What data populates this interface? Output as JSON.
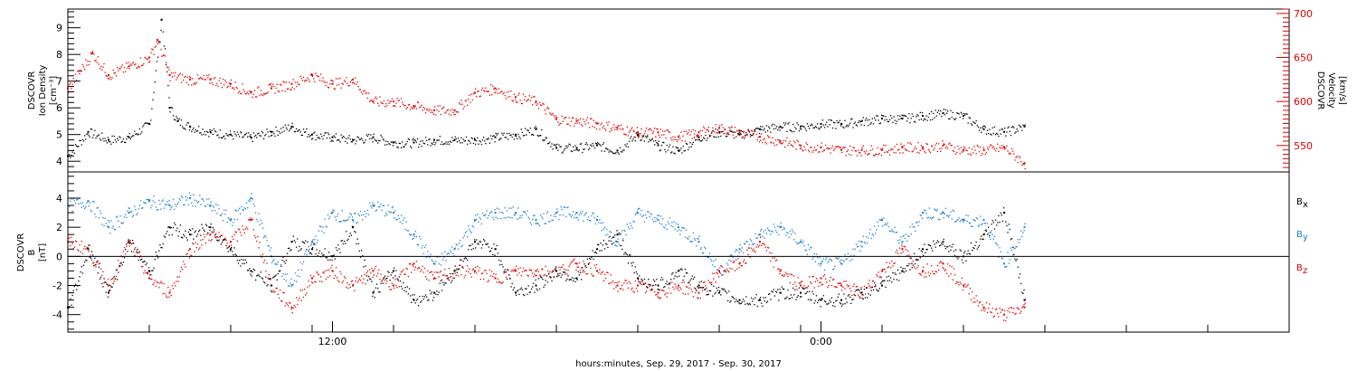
{
  "xlabel": "hours:minutes, Sep. 29, 2017 - Sep. 30, 2017",
  "colors": {
    "black": "#000000",
    "red": "#e00000",
    "blue": "#1f7fd0"
  },
  "chart_data": [
    {
      "type": "scatter",
      "panel": "top",
      "x_range_hours": [
        0,
        30
      ],
      "x_ticks": [
        {
          "hour": 6.5,
          "label": "12:00"
        },
        {
          "hour": 18.5,
          "label": "0:00"
        }
      ],
      "ylabel_left": [
        "DSCOVR",
        "Ion Density",
        "[cm⁻³]"
      ],
      "ylabel_right": [
        "DSCOVR",
        "Velocity",
        "[km/s]"
      ],
      "ylim_left": [
        3.6,
        9.7
      ],
      "yticks_left": [
        4,
        5,
        6,
        7,
        8,
        9
      ],
      "ylim_right": [
        520,
        705
      ],
      "yticks_right": [
        550,
        600,
        650,
        700
      ],
      "series": [
        {
          "name": "Ion Density",
          "axis": "left",
          "color": "#000000",
          "x": [
            0,
            0.5,
            1.0,
            1.5,
            2.0,
            2.3,
            2.5,
            2.7,
            3.0,
            3.5,
            4.0,
            4.5,
            5.0,
            5.5,
            6.0,
            6.5,
            7.0,
            7.5,
            8.0,
            8.5,
            9.0,
            9.5,
            10.0,
            10.5,
            11.0,
            11.5,
            12.0,
            12.5,
            13.0,
            13.5,
            14.0,
            14.5,
            15.0,
            15.5,
            16.0,
            16.5,
            17.0,
            17.5,
            18.0,
            18.5,
            19.0,
            19.5,
            20.0,
            20.5,
            21.0,
            21.5,
            22.0,
            22.5,
            23.0,
            23.5
          ],
          "y": [
            4.2,
            5.1,
            4.8,
            4.9,
            5.4,
            9.3,
            6.0,
            5.5,
            5.3,
            5.1,
            5.0,
            4.9,
            5.1,
            5.3,
            5.0,
            4.9,
            4.8,
            4.9,
            4.7,
            4.7,
            4.8,
            4.8,
            4.8,
            4.9,
            5.0,
            5.2,
            4.5,
            4.5,
            4.6,
            4.4,
            5.0,
            4.6,
            4.4,
            4.9,
            5.1,
            5.0,
            5.2,
            5.3,
            5.3,
            5.4,
            5.4,
            5.5,
            5.6,
            5.6,
            5.7,
            5.8,
            5.7,
            5.2,
            5.1,
            5.3
          ]
        },
        {
          "name": "Velocity",
          "axis": "right",
          "color": "#e00000",
          "x": [
            0,
            0.3,
            0.6,
            1.0,
            1.5,
            2.0,
            2.2,
            2.5,
            3.0,
            3.5,
            4.0,
            4.5,
            5.0,
            5.5,
            6.0,
            6.5,
            7.0,
            7.5,
            8.0,
            8.5,
            9.0,
            9.5,
            10.0,
            10.5,
            11.0,
            11.5,
            12.0,
            12.5,
            13.0,
            13.5,
            14.0,
            14.5,
            15.0,
            15.5,
            16.0,
            16.5,
            17.0,
            17.5,
            18.0,
            18.5,
            19.0,
            19.5,
            20.0,
            20.5,
            21.0,
            21.5,
            22.0,
            22.5,
            23.0,
            23.5
          ],
          "y": [
            615,
            635,
            655,
            630,
            640,
            650,
            670,
            630,
            625,
            625,
            620,
            610,
            615,
            620,
            630,
            620,
            625,
            600,
            600,
            595,
            590,
            590,
            610,
            615,
            605,
            600,
            580,
            578,
            575,
            570,
            565,
            565,
            560,
            565,
            570,
            565,
            560,
            555,
            550,
            548,
            545,
            545,
            545,
            548,
            548,
            550,
            545,
            545,
            548,
            530
          ]
        }
      ]
    },
    {
      "type": "scatter",
      "panel": "bottom",
      "x_range_hours": [
        0,
        30
      ],
      "ylabel_left": [
        "DSCOVR",
        "B",
        "[nT]"
      ],
      "ylim": [
        -5.2,
        5.8
      ],
      "yticks": [
        -4,
        -2,
        0,
        2,
        4
      ],
      "zero_line": true,
      "series": [
        {
          "name": "Bx",
          "label_main": "B",
          "label_sub": "x",
          "color": "#000000",
          "x": [
            0,
            0.5,
            1.0,
            1.5,
            2.0,
            2.5,
            3.0,
            3.5,
            4.0,
            4.5,
            5.0,
            5.5,
            6.0,
            6.5,
            7.0,
            7.5,
            8.0,
            8.5,
            9.0,
            9.5,
            10.0,
            10.5,
            11.0,
            11.5,
            12.0,
            12.5,
            13.0,
            13.5,
            14.0,
            14.5,
            15.0,
            15.5,
            16.0,
            16.5,
            17.0,
            17.5,
            18.0,
            18.5,
            19.0,
            19.5,
            20.0,
            20.5,
            21.0,
            21.5,
            22.0,
            22.5,
            23.0,
            23.5
          ],
          "y": [
            -3.5,
            0.5,
            -2.5,
            1.0,
            -1.0,
            2.0,
            1.5,
            2.0,
            0.5,
            -1.0,
            -2.0,
            1.0,
            0.5,
            0.0,
            2.0,
            -2.5,
            -1.0,
            -3.0,
            -2.5,
            -1.0,
            1.0,
            0.5,
            -2.5,
            -2.0,
            -1.0,
            -1.5,
            0.5,
            1.5,
            -1.5,
            -2.0,
            -1.0,
            -2.0,
            -2.5,
            -3.0,
            -3.0,
            -2.5,
            -2.5,
            -3.0,
            -3.0,
            -2.5,
            -2.0,
            -1.0,
            0.5,
            1.0,
            0.0,
            1.5,
            3.0,
            -3.0
          ]
        },
        {
          "name": "By",
          "label_main": "B",
          "label_sub": "y",
          "color": "#1f7fd0",
          "x": [
            0,
            0.5,
            1.0,
            1.5,
            2.0,
            2.5,
            3.0,
            3.5,
            4.0,
            4.5,
            5.0,
            5.5,
            6.0,
            6.5,
            7.0,
            7.5,
            8.0,
            8.5,
            9.0,
            9.5,
            10.0,
            10.5,
            11.0,
            11.5,
            12.0,
            12.5,
            13.0,
            13.5,
            14.0,
            14.5,
            15.0,
            15.5,
            16.0,
            16.5,
            17.0,
            17.5,
            18.0,
            18.5,
            19.0,
            19.5,
            20.0,
            20.5,
            21.0,
            21.5,
            22.0,
            22.5,
            23.0,
            23.5
          ],
          "y": [
            3.5,
            3.8,
            2.0,
            3.0,
            3.8,
            3.5,
            4.0,
            3.5,
            2.5,
            4.0,
            0.0,
            -2.0,
            1.0,
            3.0,
            2.5,
            3.5,
            3.0,
            1.5,
            -0.5,
            0.5,
            2.5,
            3.0,
            3.0,
            2.5,
            3.0,
            3.0,
            2.5,
            1.0,
            3.0,
            2.5,
            2.0,
            1.0,
            -1.0,
            0.5,
            1.5,
            2.0,
            1.0,
            -0.5,
            -0.5,
            1.0,
            2.5,
            1.0,
            3.0,
            3.0,
            2.5,
            2.5,
            -0.5,
            2.0
          ]
        },
        {
          "name": "Bz",
          "label_main": "B",
          "label_sub": "z",
          "color": "#e00000",
          "x": [
            0,
            0.5,
            1.0,
            1.5,
            2.0,
            2.5,
            3.0,
            3.5,
            4.0,
            4.5,
            5.0,
            5.5,
            6.0,
            6.5,
            7.0,
            7.5,
            8.0,
            8.5,
            9.0,
            9.5,
            10.0,
            10.5,
            11.0,
            11.5,
            12.0,
            12.5,
            13.0,
            13.5,
            14.0,
            14.5,
            15.0,
            15.5,
            16.0,
            16.5,
            17.0,
            17.5,
            18.0,
            18.5,
            19.0,
            19.5,
            20.0,
            20.5,
            21.0,
            21.5,
            22.0,
            22.5,
            23.0,
            23.5
          ],
          "y": [
            1.0,
            0.5,
            -2.0,
            1.0,
            -1.5,
            -2.5,
            0.5,
            1.5,
            1.0,
            2.5,
            -2.0,
            -3.5,
            -1.5,
            -1.0,
            -2.0,
            -1.0,
            -2.0,
            -0.5,
            -1.5,
            -1.0,
            -1.0,
            -1.5,
            -1.0,
            -1.0,
            -1.0,
            -0.5,
            -1.0,
            -2.0,
            -2.0,
            -2.5,
            -2.0,
            -2.5,
            -1.0,
            -0.5,
            1.0,
            -1.0,
            -2.0,
            -1.5,
            -2.0,
            -2.5,
            -1.0,
            0.5,
            -1.0,
            -0.5,
            -2.0,
            -3.5,
            -4.0,
            -3.5
          ]
        }
      ]
    }
  ]
}
